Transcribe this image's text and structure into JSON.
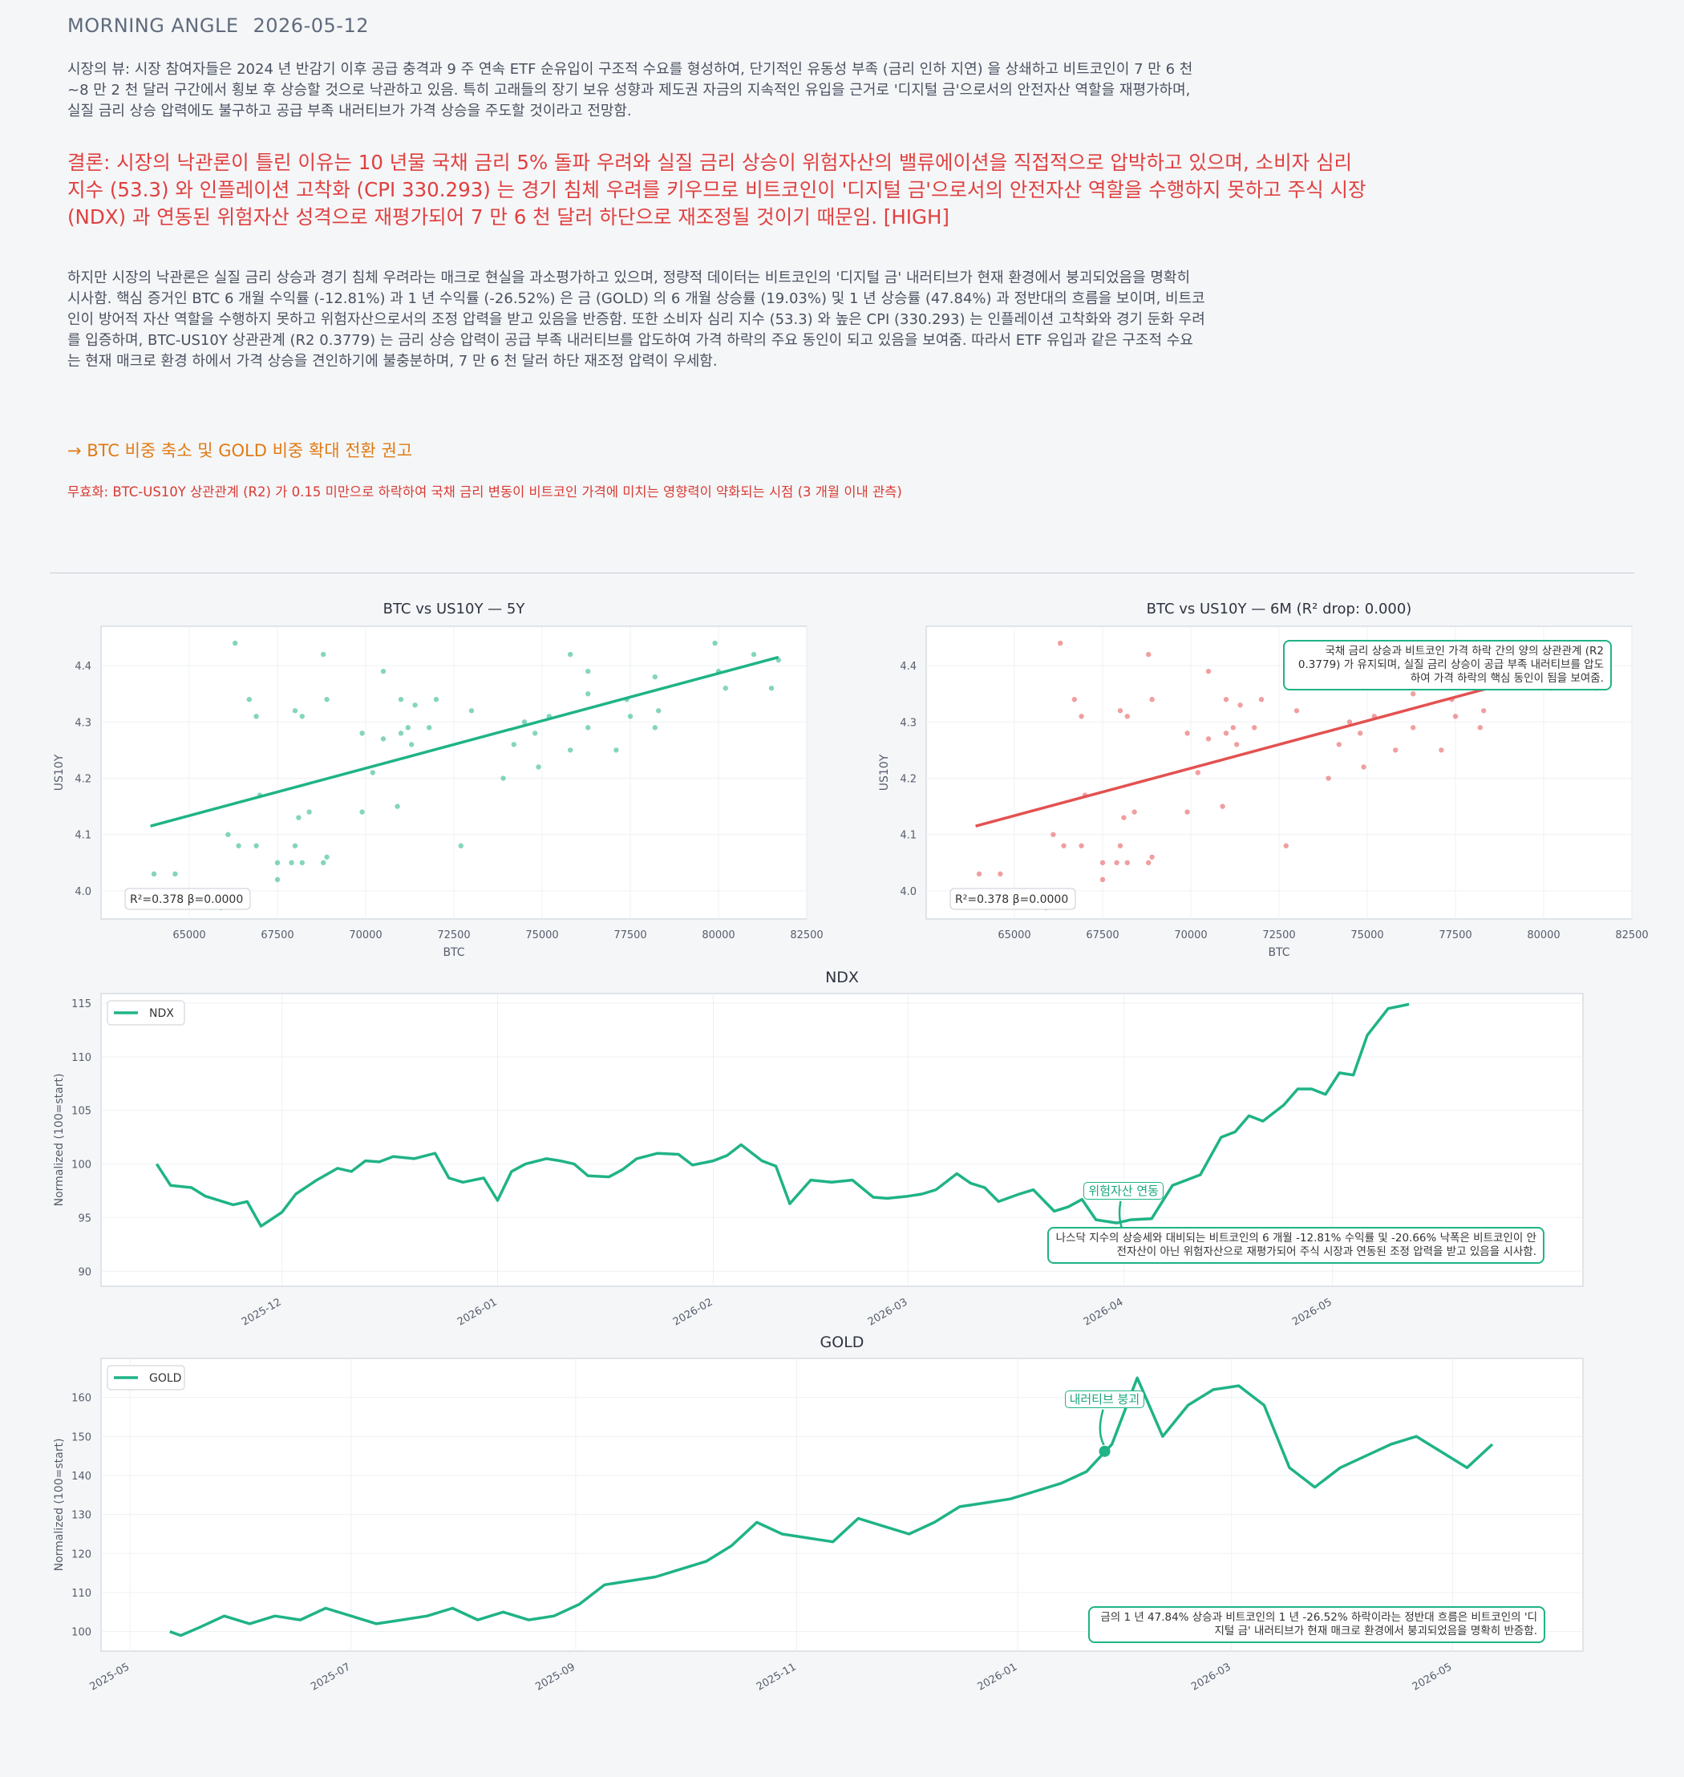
{
  "header": {
    "brand": "MORNING ANGLE",
    "date": "2026-05-12"
  },
  "market_view": "시장의 뷰: 시장 참여자들은 2024 년 반감기 이후 공급 충격과 9 주 연속 ETF 순유입이 구조적 수요를 형성하여, 단기적인 유동성 부족 (금리 인하 지연) 을 상쇄하고 비트코인이 7 만 6 천~8 만 2 천 달러 구간에서 횡보 후 상승할 것으로 낙관하고 있음. 특히 고래들의 장기 보유 성향과 제도권 자금의 지속적인 유입을 근거로 '디지털 금'으로서의 안전자산 역할을 재평가하며, 실질 금리 상승 압력에도 불구하고 공급 부족 내러티브가 가격 상승을 주도할 것이라고 전망함.",
  "conclusion": "결론: 시장의 낙관론이 틀린 이유는 10 년물 국채 금리 5% 돌파 우려와 실질 금리 상승이 위험자산의 밸류에이션을 직접적으로 압박하고 있으며, 소비자 심리 지수 (53.3) 와 인플레이션 고착화 (CPI 330.293) 는 경기 침체 우려를 키우므로 비트코인이 '디지털 금'으로서의 안전자산 역할을 수행하지 못하고 주식 시장 (NDX) 과 연동된 위험자산 성격으로 재평가되어 7 만 6 천 달러 하단으로 재조정될 것이기 때문임.  [HIGH]",
  "counter_argument": "하지만 시장의 낙관론은 실질 금리 상승과 경기 침체 우려라는 매크로 현실을 과소평가하고 있으며, 정량적 데이터는 비트코인의 '디지털 금' 내러티브가 현재 환경에서 붕괴되었음을 명확히 시사함. 핵심 증거인 BTC 6 개월 수익률 (-12.81%) 과 1 년 수익률 (-26.52%) 은 금 (GOLD) 의 6 개월 상승률 (19.03%) 및 1 년 상승률 (47.84%) 과 정반대의 흐름을 보이며, 비트코인이 방어적 자산 역할을 수행하지 못하고 위험자산으로서의 조정 압력을 받고 있음을 반증함. 또한 소비자 심리 지수 (53.3) 와 높은 CPI (330.293) 는 인플레이션 고착화와 경기 둔화 우려를 입증하며, BTC-US10Y 상관관계 (R2 0.3779) 는 금리 상승 압력이 공급 부족 내러티브를 압도하여 가격 하락의 주요 동인이 되고 있음을 보여줌. 따라서 ETF 유입과 같은 구조적 수요는 현재 매크로 환경 하에서 가격 상승을 견인하기에 불충분하며, 7 만 6 천 달러 하단 재조정 압력이 우세함.",
  "recommendation": "→ BTC 비중 축소 및 GOLD 비중 확대 전환 권고",
  "invalidation": "무효화: BTC-US10Y 상관관계 (R2) 가 0.15 미만으로 하락하여 국채 금리 변동이 비트코인 가격에 미치는 영향력이 약화되는 시점 (3 개월 이내 관측)",
  "colors": {
    "green": "#1fb386",
    "red": "#e35151",
    "axis": "#cfd4da",
    "text": "#555d6b"
  },
  "chart_data": [
    {
      "type": "scatter",
      "title": "BTC vs US10Y — 5Y",
      "xlabel": "BTC",
      "ylabel": "US10Y",
      "xlim": [
        62500,
        82500
      ],
      "ylim": [
        3.95,
        4.47
      ],
      "xticks": [
        65000,
        67500,
        70000,
        72500,
        75000,
        77500,
        80000,
        82500
      ],
      "yticks": [
        4.0,
        4.1,
        4.2,
        4.3,
        4.4
      ],
      "points": [
        [
          64000,
          4.03
        ],
        [
          64600,
          4.03
        ],
        [
          65900,
          3.97
        ],
        [
          66300,
          4.44
        ],
        [
          66100,
          4.1
        ],
        [
          66400,
          4.08
        ],
        [
          66700,
          4.34
        ],
        [
          66900,
          4.31
        ],
        [
          66900,
          4.08
        ],
        [
          67000,
          4.17
        ],
        [
          67500,
          4.02
        ],
        [
          67500,
          4.05
        ],
        [
          67900,
          4.05
        ],
        [
          68000,
          4.08
        ],
        [
          68000,
          4.32
        ],
        [
          68100,
          4.13
        ],
        [
          68200,
          4.31
        ],
        [
          68200,
          4.05
        ],
        [
          68400,
          4.14
        ],
        [
          68800,
          4.42
        ],
        [
          68800,
          4.05
        ],
        [
          68900,
          4.06
        ],
        [
          68900,
          4.34
        ],
        [
          69900,
          4.14
        ],
        [
          69900,
          4.28
        ],
        [
          70200,
          4.21
        ],
        [
          70500,
          4.39
        ],
        [
          70500,
          4.27
        ],
        [
          70900,
          4.15
        ],
        [
          71000,
          4.34
        ],
        [
          71000,
          4.28
        ],
        [
          71200,
          4.29
        ],
        [
          71300,
          4.26
        ],
        [
          71400,
          4.33
        ],
        [
          71800,
          4.29
        ],
        [
          72000,
          4.34
        ],
        [
          72700,
          4.08
        ],
        [
          73000,
          4.32
        ],
        [
          73900,
          4.2
        ],
        [
          74200,
          4.26
        ],
        [
          74500,
          4.3
        ],
        [
          74900,
          4.22
        ],
        [
          74800,
          4.28
        ],
        [
          75200,
          4.31
        ],
        [
          75800,
          4.42
        ],
        [
          75800,
          4.25
        ],
        [
          76300,
          4.39
        ],
        [
          76300,
          4.35
        ],
        [
          76300,
          4.29
        ],
        [
          77100,
          4.25
        ],
        [
          77400,
          4.34
        ],
        [
          77500,
          4.31
        ],
        [
          78200,
          4.38
        ],
        [
          78200,
          4.29
        ],
        [
          78300,
          4.32
        ],
        [
          79900,
          4.44
        ],
        [
          80000,
          4.39
        ],
        [
          80200,
          4.36
        ],
        [
          81000,
          4.42
        ],
        [
          81500,
          4.36
        ],
        [
          81700,
          4.41
        ]
      ],
      "fit": {
        "x": [
          63900,
          81700
        ],
        "y": [
          4.115,
          4.415
        ]
      },
      "stats_label": "R²=0.378  β=0.0000"
    },
    {
      "type": "scatter",
      "title": "BTC vs US10Y — 6M (R² drop: 0.000)",
      "xlabel": "BTC",
      "ylabel": "US10Y",
      "xlim": [
        62500,
        82500
      ],
      "ylim": [
        3.95,
        4.47
      ],
      "xticks": [
        65000,
        67500,
        70000,
        72500,
        75000,
        77500,
        80000,
        82500
      ],
      "yticks": [
        4.0,
        4.1,
        4.2,
        4.3,
        4.4
      ],
      "points": [
        [
          64000,
          4.03
        ],
        [
          64600,
          4.03
        ],
        [
          65900,
          3.97
        ],
        [
          66300,
          4.44
        ],
        [
          66100,
          4.1
        ],
        [
          66400,
          4.08
        ],
        [
          66700,
          4.34
        ],
        [
          66900,
          4.31
        ],
        [
          66900,
          4.08
        ],
        [
          67000,
          4.17
        ],
        [
          67500,
          4.02
        ],
        [
          67500,
          4.05
        ],
        [
          67900,
          4.05
        ],
        [
          68000,
          4.08
        ],
        [
          68000,
          4.32
        ],
        [
          68100,
          4.13
        ],
        [
          68200,
          4.31
        ],
        [
          68200,
          4.05
        ],
        [
          68400,
          4.14
        ],
        [
          68800,
          4.42
        ],
        [
          68800,
          4.05
        ],
        [
          68900,
          4.06
        ],
        [
          68900,
          4.34
        ],
        [
          69900,
          4.14
        ],
        [
          69900,
          4.28
        ],
        [
          70200,
          4.21
        ],
        [
          70500,
          4.39
        ],
        [
          70500,
          4.27
        ],
        [
          70900,
          4.15
        ],
        [
          71000,
          4.34
        ],
        [
          71000,
          4.28
        ],
        [
          71200,
          4.29
        ],
        [
          71300,
          4.26
        ],
        [
          71400,
          4.33
        ],
        [
          71800,
          4.29
        ],
        [
          72000,
          4.34
        ],
        [
          72700,
          4.08
        ],
        [
          73000,
          4.32
        ],
        [
          73900,
          4.2
        ],
        [
          74200,
          4.26
        ],
        [
          74500,
          4.3
        ],
        [
          74900,
          4.22
        ],
        [
          74800,
          4.28
        ],
        [
          75200,
          4.31
        ],
        [
          75800,
          4.42
        ],
        [
          75800,
          4.25
        ],
        [
          76300,
          4.39
        ],
        [
          76300,
          4.35
        ],
        [
          76300,
          4.29
        ],
        [
          77100,
          4.25
        ],
        [
          77400,
          4.34
        ],
        [
          77500,
          4.31
        ],
        [
          78200,
          4.38
        ],
        [
          78200,
          4.29
        ],
        [
          78300,
          4.32
        ],
        [
          79900,
          4.44
        ],
        [
          80000,
          4.39
        ],
        [
          80200,
          4.36
        ],
        [
          81000,
          4.42
        ],
        [
          81500,
          4.36
        ],
        [
          81700,
          4.41
        ]
      ],
      "fit": {
        "x": [
          63900,
          81700
        ],
        "y": [
          4.115,
          4.415
        ]
      },
      "stats_label": "R²=0.378  β=0.0000",
      "annotation": "국채 금리 상승과 비트코인 가격 하락 간의 양의 상관관계 (R2 0.3779) 가 유지되며, 실질 금리 상승이 공급 부족 내러티브를 압도하여 가격 하락의 핵심 동인이 됨을 보여줌."
    },
    {
      "type": "line",
      "title": "NDX",
      "ylabel": "Normalized (100=start)",
      "legend": "NDX",
      "legend_position": "top-left",
      "xticks": [
        "2025-12",
        "2026-01",
        "2026-02",
        "2026-03",
        "2026-04",
        "2026-05"
      ],
      "ylim": [
        88.6,
        115.9
      ],
      "yticks": [
        90,
        95,
        100,
        105,
        110,
        115
      ],
      "x": [
        "2025-11-13",
        "2025-11-15",
        "2025-11-18",
        "2025-11-20",
        "2025-11-24",
        "2025-11-26",
        "2025-11-28",
        "2025-12-01",
        "2025-12-03",
        "2025-12-06",
        "2025-12-09",
        "2025-12-11",
        "2025-12-13",
        "2025-12-15",
        "2025-12-17",
        "2025-12-20",
        "2025-12-23",
        "2025-12-25",
        "2025-12-27",
        "2025-12-30",
        "2026-01-01",
        "2026-01-03",
        "2026-01-05",
        "2026-01-08",
        "2026-01-10",
        "2026-01-12",
        "2026-01-14",
        "2026-01-17",
        "2026-01-19",
        "2026-01-21",
        "2026-01-24",
        "2026-01-27",
        "2026-01-29",
        "2026-02-01",
        "2026-02-03",
        "2026-02-05",
        "2026-02-08",
        "2026-02-10",
        "2026-02-12",
        "2026-02-15",
        "2026-02-18",
        "2026-02-21",
        "2026-02-24",
        "2026-02-26",
        "2026-03-01",
        "2026-03-03",
        "2026-03-05",
        "2026-03-08",
        "2026-03-10",
        "2026-03-12",
        "2026-03-14",
        "2026-03-17",
        "2026-03-19",
        "2026-03-22",
        "2026-03-24",
        "2026-03-26",
        "2026-03-28",
        "2026-03-31",
        "2026-04-02",
        "2026-04-05",
        "2026-04-08",
        "2026-04-10",
        "2026-04-12",
        "2026-04-15",
        "2026-04-17",
        "2026-04-19",
        "2026-04-21",
        "2026-04-24",
        "2026-04-26",
        "2026-04-28",
        "2026-04-30",
        "2026-05-02",
        "2026-05-04",
        "2026-05-06",
        "2026-05-09",
        "2026-05-12"
      ],
      "y": [
        100.0,
        98.0,
        97.8,
        97.0,
        96.2,
        96.5,
        94.2,
        95.5,
        97.2,
        98.5,
        99.6,
        99.3,
        100.3,
        100.2,
        100.7,
        100.5,
        101.0,
        98.7,
        98.3,
        98.7,
        96.6,
        99.3,
        100.0,
        100.5,
        100.3,
        100.0,
        98.9,
        98.8,
        99.5,
        100.5,
        101.0,
        100.9,
        99.9,
        100.3,
        100.8,
        101.8,
        100.3,
        99.8,
        96.3,
        98.5,
        98.3,
        98.5,
        96.9,
        96.8,
        97.0,
        97.2,
        97.6,
        99.1,
        98.2,
        97.8,
        96.5,
        97.2,
        97.6,
        95.6,
        96.0,
        96.7,
        94.8,
        94.5,
        94.8,
        94.9,
        98.0,
        98.5,
        99.0,
        102.5,
        103.0,
        104.5,
        104.0,
        105.5,
        107.0,
        107.0,
        106.5,
        108.5,
        108.3,
        112.0,
        114.5,
        114.9
      ],
      "annotation": "나스닥 지수의 상승세와 대비되는 비트코인의 6 개월 -12.81% 수익률 및 -20.66% 낙폭은 비트코인이 안전자산이 아닌 위험자산으로 재평가되어 주식 시장과 연동된 조정 압력을 받고 있음을 시사함.",
      "marker": {
        "x": "2026-04-01",
        "y": 93.1,
        "label": "위험자산 연동"
      }
    },
    {
      "type": "line",
      "title": "GOLD",
      "ylabel": "Normalized (100=start)",
      "legend": "GOLD",
      "legend_position": "top-left",
      "xticks": [
        "2025-05",
        "2025-07",
        "2025-09",
        "2025-11",
        "2026-01",
        "2026-03",
        "2026-05"
      ],
      "ylim": [
        95,
        170
      ],
      "yticks": [
        100,
        110,
        120,
        130,
        140,
        150,
        160
      ],
      "x": [
        "2025-05-12",
        "2025-05-15",
        "2025-05-20",
        "2025-05-27",
        "2025-06-03",
        "2025-06-10",
        "2025-06-17",
        "2025-06-24",
        "2025-07-01",
        "2025-07-08",
        "2025-07-15",
        "2025-07-22",
        "2025-07-29",
        "2025-08-05",
        "2025-08-12",
        "2025-08-19",
        "2025-08-26",
        "2025-09-02",
        "2025-09-09",
        "2025-09-16",
        "2025-09-23",
        "2025-09-30",
        "2025-10-07",
        "2025-10-14",
        "2025-10-21",
        "2025-10-28",
        "2025-11-04",
        "2025-11-11",
        "2025-11-18",
        "2025-11-25",
        "2025-12-02",
        "2025-12-09",
        "2025-12-16",
        "2025-12-23",
        "2025-12-30",
        "2026-01-06",
        "2026-01-13",
        "2026-01-20",
        "2026-01-27",
        "2026-02-03",
        "2026-02-10",
        "2026-02-17",
        "2026-02-24",
        "2026-03-03",
        "2026-03-10",
        "2026-03-17",
        "2026-03-24",
        "2026-03-31",
        "2026-04-07",
        "2026-04-14",
        "2026-04-21",
        "2026-04-28",
        "2026-05-05",
        "2026-05-12"
      ],
      "y": [
        100,
        99,
        101,
        104,
        102,
        104,
        103,
        106,
        104,
        102,
        103,
        104,
        106,
        103,
        105,
        103,
        104,
        107,
        112,
        113,
        114,
        116,
        118,
        122,
        128,
        125,
        124,
        123,
        129,
        127,
        125,
        128,
        132,
        133,
        134,
        136,
        138,
        141,
        148,
        165,
        150,
        158,
        162,
        163,
        158,
        142,
        137,
        142,
        145,
        148,
        150,
        146,
        142,
        148
      ],
      "annotation": "금의 1 년 47.84% 상승과 비트코인의 1 년 -26.52% 하락이라는 정반대 흐름은 비트코인의 '디지털 금' 내러티브가 현재 매크로 환경에서 붕괴되었음을 명확히 반증함.",
      "marker": {
        "x": "2026-01-25",
        "y": 146.2,
        "label": "내러티브 붕괴"
      }
    }
  ]
}
